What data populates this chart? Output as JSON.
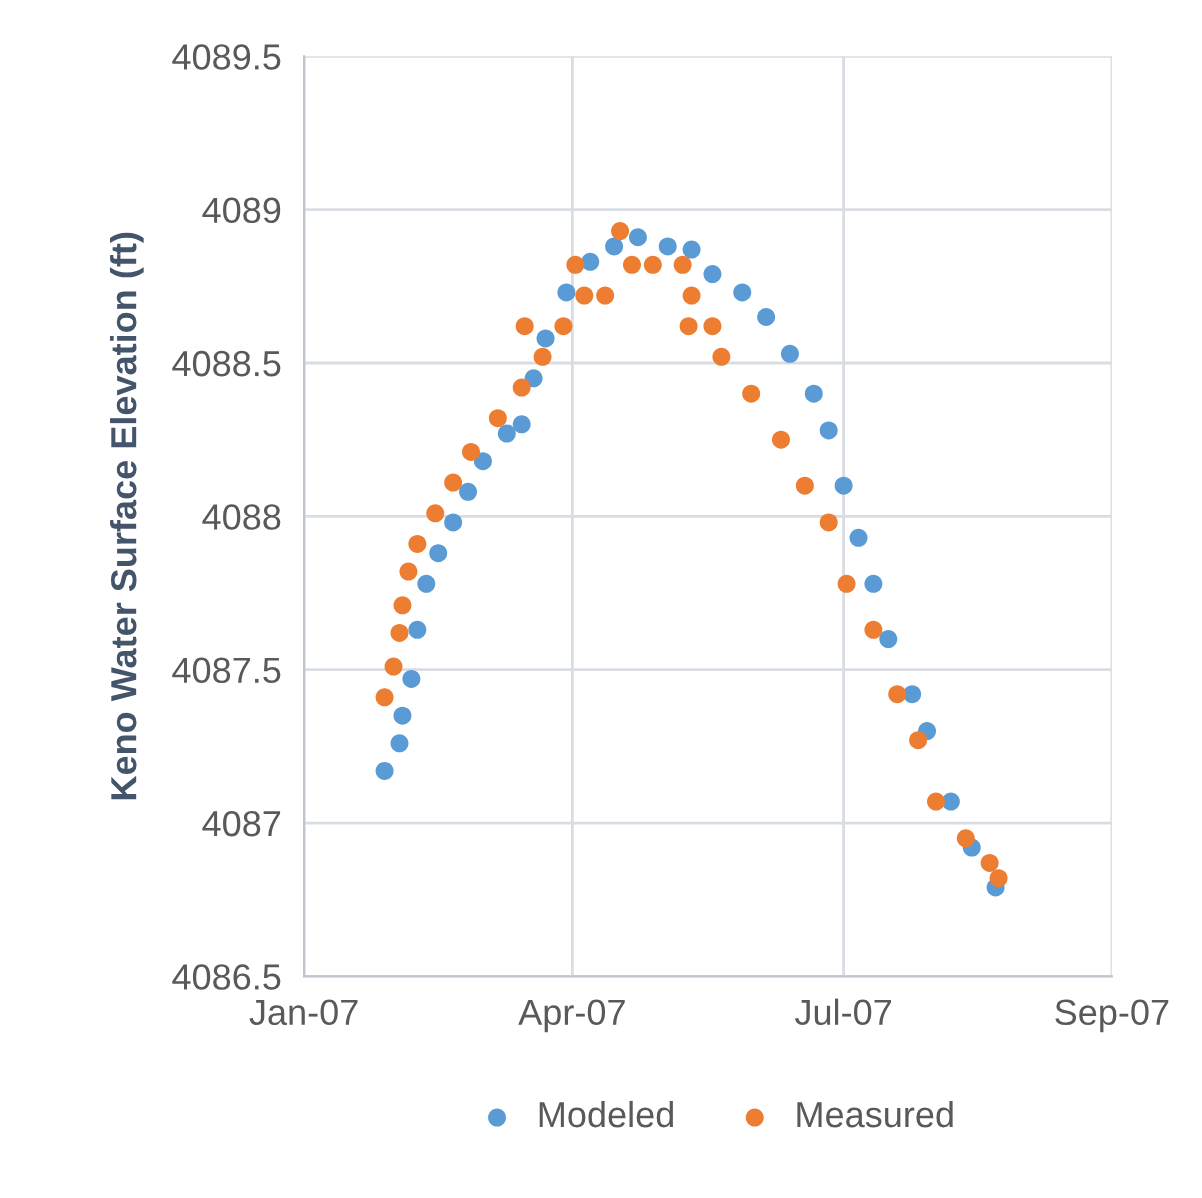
{
  "chart_data": {
    "type": "scatter",
    "ylabel": "Keno Water Surface Elevation (ft)",
    "xlim": [
      "2007-01-01",
      "2007-09-29"
    ],
    "xticks": [
      {
        "value": "2007-01-01",
        "label": "Jan-07"
      },
      {
        "value": "2007-04-01",
        "label": "Apr-07"
      },
      {
        "value": "2007-07-01",
        "label": "Jul-07"
      },
      {
        "value": "2007-09-29",
        "label": "Sep-07"
      }
    ],
    "ylim": [
      4086.5,
      4089.5
    ],
    "yticks": [
      4086.5,
      4087,
      4087.5,
      4088,
      4088.5,
      4089,
      4089.5
    ],
    "grid": true,
    "legend": "bottom",
    "marker": "circle",
    "series": [
      {
        "name": "Modeled",
        "color": "#5b9bd5",
        "x": [
          "2007-01-28",
          "2007-02-02",
          "2007-02-03",
          "2007-02-06",
          "2007-02-08",
          "2007-02-11",
          "2007-02-15",
          "2007-02-20",
          "2007-02-25",
          "2007-03-02",
          "2007-03-10",
          "2007-03-15",
          "2007-03-19",
          "2007-03-23",
          "2007-03-30",
          "2007-04-07",
          "2007-04-15",
          "2007-04-23",
          "2007-05-03",
          "2007-05-11",
          "2007-05-18",
          "2007-05-28",
          "2007-06-05",
          "2007-06-13",
          "2007-06-21",
          "2007-06-26",
          "2007-07-01",
          "2007-07-06",
          "2007-07-11",
          "2007-07-16",
          "2007-07-24",
          "2007-07-29",
          "2007-08-06",
          "2007-08-13",
          "2007-08-21"
        ],
        "values": [
          4087.17,
          4087.26,
          4087.35,
          4087.47,
          4087.63,
          4087.78,
          4087.88,
          4087.98,
          4088.08,
          4088.18,
          4088.27,
          4088.3,
          4088.45,
          4088.58,
          4088.73,
          4088.83,
          4088.88,
          4088.91,
          4088.88,
          4088.87,
          4088.79,
          4088.73,
          4088.65,
          4088.53,
          4088.4,
          4088.28,
          4088.1,
          4087.93,
          4087.78,
          4087.6,
          4087.42,
          4087.3,
          4087.07,
          4086.92,
          4086.79
        ]
      },
      {
        "name": "Measured",
        "color": "#ed7d31",
        "x": [
          "2007-01-28",
          "2007-01-31",
          "2007-02-02",
          "2007-02-03",
          "2007-02-05",
          "2007-02-08",
          "2007-02-14",
          "2007-02-20",
          "2007-02-26",
          "2007-03-07",
          "2007-03-15",
          "2007-03-16",
          "2007-03-22",
          "2007-03-29",
          "2007-04-02",
          "2007-04-05",
          "2007-04-12",
          "2007-04-17",
          "2007-04-21",
          "2007-04-28",
          "2007-05-08",
          "2007-05-10",
          "2007-05-11",
          "2007-05-18",
          "2007-05-21",
          "2007-05-31",
          "2007-06-10",
          "2007-06-18",
          "2007-06-26",
          "2007-07-02",
          "2007-07-11",
          "2007-07-19",
          "2007-07-26",
          "2007-08-01",
          "2007-08-11",
          "2007-08-19",
          "2007-08-22"
        ],
        "values": [
          4087.41,
          4087.51,
          4087.62,
          4087.71,
          4087.82,
          4087.91,
          4088.01,
          4088.11,
          4088.21,
          4088.32,
          4088.42,
          4088.62,
          4088.52,
          4088.62,
          4088.82,
          4088.72,
          4088.72,
          4088.93,
          4088.82,
          4088.82,
          4088.82,
          4088.62,
          4088.72,
          4088.62,
          4088.52,
          4088.4,
          4088.25,
          4088.1,
          4087.98,
          4087.78,
          4087.63,
          4087.42,
          4087.27,
          4087.07,
          4086.95,
          4086.87,
          4086.82
        ]
      }
    ]
  }
}
